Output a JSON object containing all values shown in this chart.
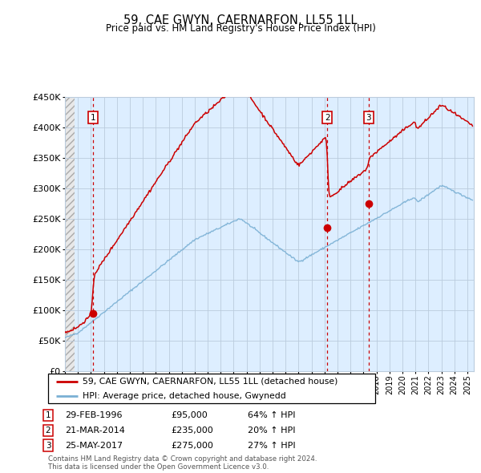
{
  "title": "59, CAE GWYN, CAERNARFON, LL55 1LL",
  "subtitle": "Price paid vs. HM Land Registry's House Price Index (HPI)",
  "ylim": [
    0,
    450000
  ],
  "xlim_start": 1994.0,
  "xlim_end": 2025.5,
  "yticks": [
    0,
    50000,
    100000,
    150000,
    200000,
    250000,
    300000,
    350000,
    400000,
    450000
  ],
  "ytick_labels": [
    "£0",
    "£50K",
    "£100K",
    "£150K",
    "£200K",
    "£250K",
    "£300K",
    "£350K",
    "£400K",
    "£450K"
  ],
  "transactions": [
    {
      "date_num": 1996.16,
      "price": 95000,
      "label": "1",
      "date_str": "29-FEB-1996",
      "price_str": "£95,000",
      "pct_str": "64% ↑ HPI"
    },
    {
      "date_num": 2014.22,
      "price": 235000,
      "label": "2",
      "date_str": "21-MAR-2014",
      "price_str": "£235,000",
      "pct_str": "20% ↑ HPI"
    },
    {
      "date_num": 2017.39,
      "price": 275000,
      "label": "3",
      "date_str": "25-MAY-2017",
      "price_str": "£275,000",
      "pct_str": "27% ↑ HPI"
    }
  ],
  "legend_entry1": "59, CAE GWYN, CAERNARFON, LL55 1LL (detached house)",
  "legend_entry2": "HPI: Average price, detached house, Gwynedd",
  "footer1": "Contains HM Land Registry data © Crown copyright and database right 2024.",
  "footer2": "This data is licensed under the Open Government Licence v3.0.",
  "red_color": "#cc0000",
  "blue_color": "#7ab0d4",
  "bg_color": "#ddeeff",
  "hatch_color": "#aaaaaa",
  "grid_color": "#bbccdd",
  "hatch_bg": "#e8e8e8"
}
